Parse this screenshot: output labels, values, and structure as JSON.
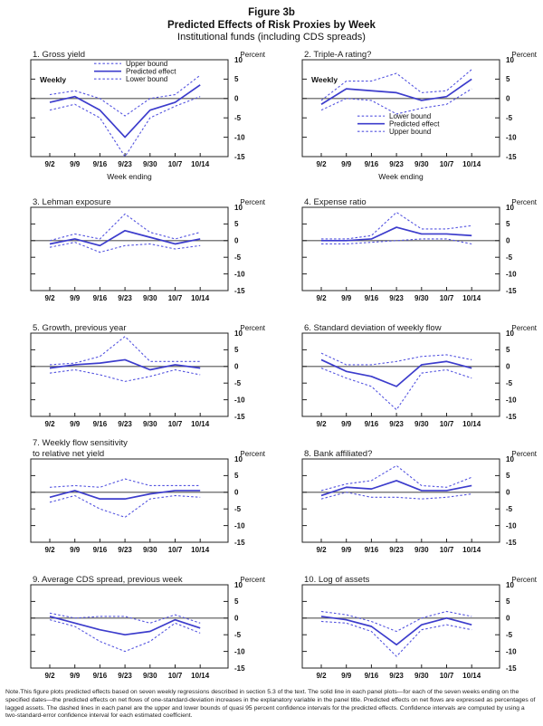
{
  "header": {
    "line1": "Figure 3b",
    "line2": "Predicted Effects of Risk Proxies by Week",
    "line3": "Institutional funds (including CDS spreads)"
  },
  "colors": {
    "solid_line": "#3c3ccc",
    "dashed_line": "#5454e0",
    "zero_line": "#555555",
    "frame": "#222222"
  },
  "axis": {
    "unit_label": "Percent",
    "ymax": 10,
    "ymin": -15,
    "yticks": [
      10,
      5,
      0,
      -5,
      -10,
      -15
    ],
    "x_categories": [
      "9/2",
      "9/9",
      "9/16",
      "9/23",
      "9/30",
      "10/7",
      "10/14"
    ]
  },
  "footnote": "Note.This figure plots predicted effects based on seven weekly regressions described in section 5.3 of the text. The solid line in each panel plots—for each of the seven weeks ending on the specified dates—the predicted effects on net flows of one-standard-deviation increases in the explanatory variable in the panel title. Predicted effects on net flows are expressed as percentages of lagged assets. The dashed lines in each panel are the upper and lower bounds of quasi 95 percent confidence intervals for the predicted effects. Confidence intervals are computed by using a two-standard-error confidence interval for each estimated coefficient.",
  "chart_data": [
    {
      "type": "line",
      "title": "1. Gross yield",
      "weekly_label": "Weekly",
      "x_axis_label": "Week ending",
      "legend": {
        "position": "top",
        "entries": [
          {
            "label": "Upper bound",
            "style": "dashed"
          },
          {
            "label": "Predicted effect",
            "style": "solid"
          },
          {
            "label": "Lower bound",
            "style": "dashed"
          }
        ]
      },
      "series": [
        {
          "name": "Upper bound",
          "style": "dashed",
          "values": [
            1,
            2,
            0,
            -4.5,
            0,
            1,
            6
          ]
        },
        {
          "name": "Predicted effect",
          "style": "solid",
          "values": [
            -1,
            0.5,
            -3,
            -10,
            -3,
            -1,
            3.5
          ]
        },
        {
          "name": "Lower bound",
          "style": "dashed",
          "values": [
            -3,
            -1.5,
            -5,
            -15,
            -5,
            -2,
            0.5
          ]
        }
      ]
    },
    {
      "type": "line",
      "title": "2. Triple-A rating?",
      "weekly_label": "Weekly",
      "x_axis_label": "Week ending",
      "legend": {
        "position": "middle",
        "entries": [
          {
            "label": "Lower bound",
            "style": "dashed"
          },
          {
            "label": "Predicted effect",
            "style": "solid"
          },
          {
            "label": "Upper bound",
            "style": "dashed"
          }
        ]
      },
      "series": [
        {
          "name": "Upper bound",
          "style": "dashed",
          "values": [
            -0.5,
            4.5,
            4.5,
            6.5,
            1.5,
            2,
            7.5
          ]
        },
        {
          "name": "Predicted effect",
          "style": "solid",
          "values": [
            -1.5,
            2.5,
            2,
            1.5,
            -0.5,
            0.5,
            5
          ]
        },
        {
          "name": "Lower bound",
          "style": "dashed",
          "values": [
            -3,
            0,
            -0.5,
            -4,
            -2.5,
            -1.5,
            2.5
          ]
        }
      ]
    },
    {
      "type": "line",
      "title": "3. Lehman exposure",
      "weekly_label": null,
      "x_axis_label": null,
      "legend": null,
      "series": [
        {
          "name": "Upper bound",
          "style": "dashed",
          "values": [
            0,
            2,
            0.5,
            8,
            2.5,
            0.5,
            2.5
          ]
        },
        {
          "name": "Predicted effect",
          "style": "solid",
          "values": [
            -1,
            0.5,
            -1.5,
            3,
            1,
            -1,
            0.5
          ]
        },
        {
          "name": "Lower bound",
          "style": "dashed",
          "values": [
            -2,
            -0.5,
            -3.5,
            -1.5,
            -1,
            -2.5,
            -1.5
          ]
        }
      ]
    },
    {
      "type": "line",
      "title": "4. Expense ratio",
      "weekly_label": null,
      "x_axis_label": null,
      "legend": null,
      "series": [
        {
          "name": "Upper bound",
          "style": "dashed",
          "values": [
            0.5,
            0.5,
            1.5,
            8.5,
            3.5,
            3.5,
            4.5
          ]
        },
        {
          "name": "Predicted effect",
          "style": "solid",
          "values": [
            0,
            0,
            0.5,
            4,
            2,
            2,
            1.5
          ]
        },
        {
          "name": "Lower bound",
          "style": "dashed",
          "values": [
            -1,
            -1,
            -0.5,
            0,
            0.5,
            0.5,
            -1
          ]
        }
      ]
    },
    {
      "type": "line",
      "title": "5. Growth, previous year",
      "weekly_label": null,
      "x_axis_label": null,
      "legend": null,
      "series": [
        {
          "name": "Upper bound",
          "style": "dashed",
          "values": [
            0.5,
            1,
            3,
            9,
            1.5,
            1.5,
            1.5
          ]
        },
        {
          "name": "Predicted effect",
          "style": "solid",
          "values": [
            -0.5,
            0.5,
            1,
            2,
            -1,
            0.5,
            -0.5
          ]
        },
        {
          "name": "Lower bound",
          "style": "dashed",
          "values": [
            -2,
            -1,
            -2.5,
            -4.5,
            -3,
            -1,
            -2.5
          ]
        }
      ]
    },
    {
      "type": "line",
      "title": "6. Standard deviation of weekly flow",
      "weekly_label": null,
      "x_axis_label": null,
      "legend": null,
      "series": [
        {
          "name": "Upper bound",
          "style": "dashed",
          "values": [
            4,
            0.5,
            0.5,
            1.5,
            3,
            3.5,
            2
          ]
        },
        {
          "name": "Predicted effect",
          "style": "solid",
          "values": [
            2,
            -1.5,
            -3,
            -6,
            0.5,
            1.5,
            -0.5
          ]
        },
        {
          "name": "Lower bound",
          "style": "dashed",
          "values": [
            -0.5,
            -3.5,
            -6,
            -13,
            -2,
            -1,
            -3.5
          ]
        }
      ]
    },
    {
      "type": "line",
      "title": "7. Weekly flow sensitivity",
      "title2": "to relative net yield",
      "weekly_label": null,
      "x_axis_label": null,
      "legend": null,
      "series": [
        {
          "name": "Upper bound",
          "style": "dashed",
          "values": [
            1.5,
            2,
            1.5,
            4,
            2,
            2,
            2
          ]
        },
        {
          "name": "Predicted effect",
          "style": "solid",
          "values": [
            -1.5,
            0.5,
            -2,
            -2,
            -0.5,
            0.5,
            0.5
          ]
        },
        {
          "name": "Lower bound",
          "style": "dashed",
          "values": [
            -3,
            -1,
            -5,
            -7.5,
            -2,
            -1,
            -1.5
          ]
        }
      ]
    },
    {
      "type": "line",
      "title": "8. Bank affiliated?",
      "weekly_label": null,
      "x_axis_label": null,
      "legend": null,
      "series": [
        {
          "name": "Upper bound",
          "style": "dashed",
          "values": [
            0.5,
            2.5,
            3.5,
            8,
            2,
            1.5,
            4.5
          ]
        },
        {
          "name": "Predicted effect",
          "style": "solid",
          "values": [
            -1,
            1.5,
            1,
            3.5,
            0.5,
            0.5,
            2
          ]
        },
        {
          "name": "Lower bound",
          "style": "dashed",
          "values": [
            -2,
            0,
            -1.5,
            -1.5,
            -2,
            -1.5,
            -0.5
          ]
        }
      ]
    },
    {
      "type": "line",
      "title": "9. Average CDS spread, previous week",
      "weekly_label": null,
      "x_axis_label": null,
      "legend": null,
      "series": [
        {
          "name": "Upper bound",
          "style": "dashed",
          "values": [
            1.5,
            0,
            0.5,
            0.5,
            -1.5,
            1,
            -1.5
          ]
        },
        {
          "name": "Predicted effect",
          "style": "solid",
          "values": [
            0.5,
            -1.5,
            -3.5,
            -5,
            -4,
            -0.5,
            -3
          ]
        },
        {
          "name": "Lower bound",
          "style": "dashed",
          "values": [
            -0.5,
            -2.5,
            -7,
            -10,
            -7,
            -1.5,
            -4.5
          ]
        }
      ]
    },
    {
      "type": "line",
      "title": "10. Log of assets",
      "weekly_label": null,
      "x_axis_label": null,
      "legend": null,
      "series": [
        {
          "name": "Upper bound",
          "style": "dashed",
          "values": [
            2,
            1,
            -1,
            -4,
            0,
            2,
            0.5
          ]
        },
        {
          "name": "Predicted effect",
          "style": "solid",
          "values": [
            0.5,
            -0.5,
            -2.5,
            -8,
            -2,
            0,
            -2
          ]
        },
        {
          "name": "Lower bound",
          "style": "dashed",
          "values": [
            -1,
            -1.5,
            -4,
            -11.5,
            -3.5,
            -2,
            -3.5
          ]
        }
      ]
    }
  ]
}
